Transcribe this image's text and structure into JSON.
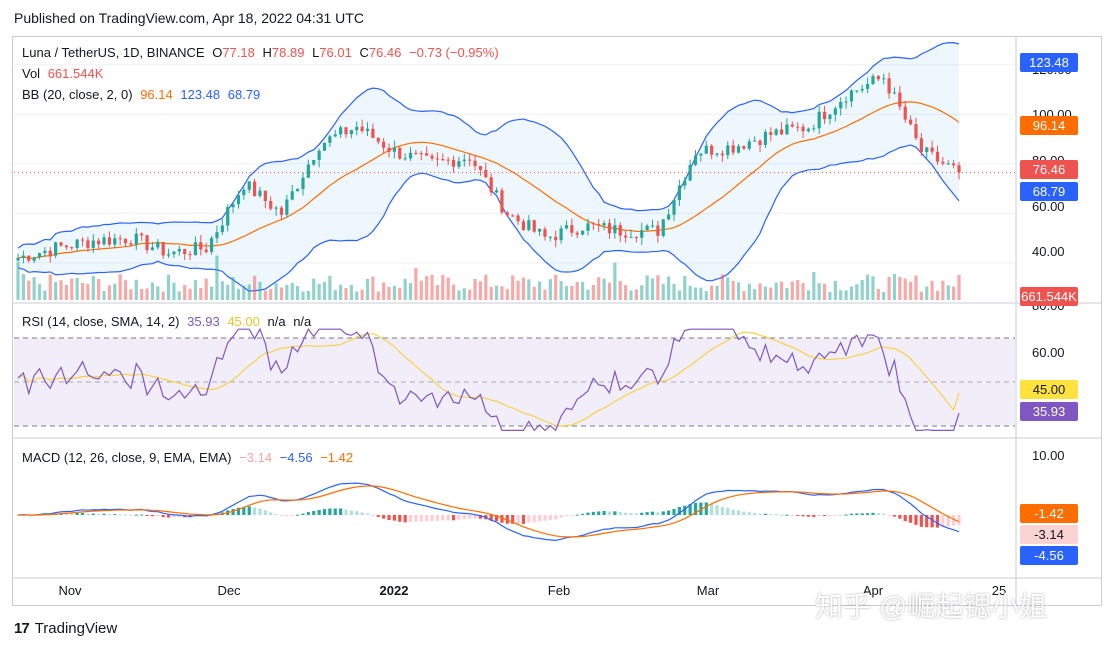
{
  "header": {
    "published": "Published on TradingView.com, Apr 18, 2022 04:31 UTC"
  },
  "legend": {
    "symbol": "Luna / TetherUS, 1D, BINANCE",
    "o_label": "O",
    "o_value": "77.18",
    "h_label": "H",
    "h_value": "78.89",
    "l_label": "L",
    "l_value": "76.01",
    "c_label": "C",
    "c_value": "76.46",
    "change": "−0.73 (−0.95%)",
    "vol_label": "Vol",
    "vol_value": "661.544K",
    "bb_label": "BB (20, close, 2, 0)",
    "bb_mid": "96.14",
    "bb_upper": "123.48",
    "bb_lower": "68.79",
    "rsi_label": "RSI (14, close, SMA, 14, 2)",
    "rsi_value": "35.93",
    "rsi_ma": "45.00",
    "rsi_na1": "n/a",
    "rsi_na2": "n/a",
    "macd_label": "MACD (12, 26, close, 9, EMA, EMA)",
    "macd_hist": "−3.14",
    "macd_line": "−4.56",
    "macd_signal": "−1.42"
  },
  "price_axis": {
    "ticks": [
      "120.00",
      "100.00",
      "80.00",
      "60.00",
      "40.00"
    ]
  },
  "rsi_axis": {
    "ticks": [
      "80.00",
      "60.00"
    ]
  },
  "macd_axis": {
    "ticks": [
      "10.00"
    ]
  },
  "tags": {
    "bb_upper": "123.48",
    "bb_mid": "96.14",
    "last": "76.46",
    "bb_lower": "68.79",
    "volume": "661.544K",
    "rsi_ma": "45.00",
    "rsi": "35.93",
    "macd_signal": "-1.42",
    "macd_hist": "-3.14",
    "macd_line": "-4.56"
  },
  "x_axis": {
    "labels": [
      "Nov",
      "Dec",
      "2022",
      "Feb",
      "Mar",
      "Apr",
      "25"
    ]
  },
  "footer": {
    "brand": "TradingView",
    "logo": "17"
  },
  "watermark": "知乎 @崛起锶小姐",
  "colors": {
    "up": "#26a69a",
    "down": "#ef5350",
    "bb_band": "#2962ff",
    "bb_basis": "#ff6d00",
    "rsi": "#7e57c2",
    "rsi_ma": "#f7d14a",
    "macd": "#2962ff",
    "signal": "#ff6d00"
  },
  "chart_data": {
    "type": "candlestick",
    "symbol": "LUNA/USDT",
    "timeframe": "1D",
    "price_range": [
      25,
      130
    ],
    "candles": [
      {
        "x": "Oct 24",
        "close": 42
      },
      {
        "x": "Oct 31",
        "close": 46
      },
      {
        "x": "Nov 7",
        "close": 49
      },
      {
        "x": "Nov 14",
        "close": 50
      },
      {
        "x": "Nov 21",
        "close": 44
      },
      {
        "x": "Nov 28",
        "close": 46
      },
      {
        "x": "Dec 5",
        "close": 72
      },
      {
        "x": "Dec 12",
        "close": 60
      },
      {
        "x": "Dec 19",
        "close": 88
      },
      {
        "x": "Dec 26",
        "close": 95
      },
      {
        "x": "Jan 2",
        "close": 85
      },
      {
        "x": "Jan 9",
        "close": 80
      },
      {
        "x": "Jan 16",
        "close": 83
      },
      {
        "x": "Jan 23",
        "close": 60
      },
      {
        "x": "Jan 30",
        "close": 50
      },
      {
        "x": "Feb 6",
        "close": 55
      },
      {
        "x": "Feb 13",
        "close": 53
      },
      {
        "x": "Feb 20",
        "close": 53
      },
      {
        "x": "Feb 27",
        "close": 85
      },
      {
        "x": "Mar 6",
        "close": 87
      },
      {
        "x": "Mar 13",
        "close": 92
      },
      {
        "x": "Mar 20",
        "close": 95
      },
      {
        "x": "Mar 27",
        "close": 108
      },
      {
        "x": "Apr 3",
        "close": 115
      },
      {
        "x": "Apr 10",
        "close": 85
      },
      {
        "x": "Apr 17",
        "close": 76.46
      }
    ],
    "bollinger": {
      "upper": 123.48,
      "basis": 96.14,
      "lower": 68.79
    },
    "rsi": {
      "value": 35.93,
      "ma": 45.0,
      "bands": [
        30,
        70
      ]
    },
    "macd": {
      "macd": -4.56,
      "signal": -1.42,
      "histogram": -3.14
    }
  }
}
